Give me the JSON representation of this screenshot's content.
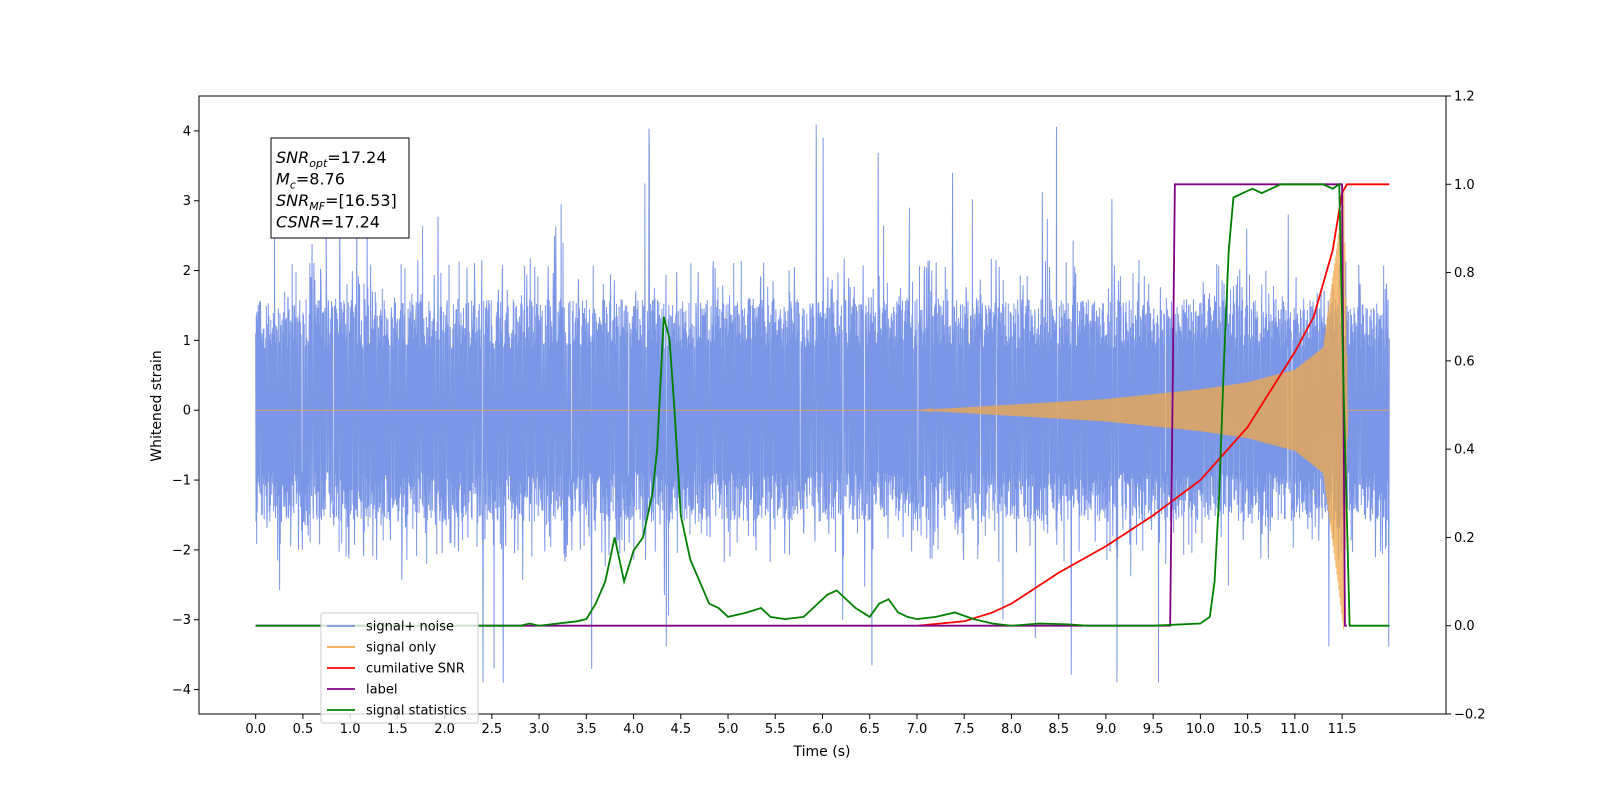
{
  "chart_data": {
    "type": "line",
    "xlabel": "Time (s)",
    "ylabel": "Whitened strain",
    "xlim": [
      -0.6,
      12.6
    ],
    "ylim": [
      -4.35,
      4.5
    ],
    "ylim_right": [
      -0.2,
      1.2
    ],
    "x_ticks": [
      "0.0",
      "0.5",
      "1.0",
      "1.5",
      "2.0",
      "2.5",
      "3.0",
      "3.5",
      "4.0",
      "4.5",
      "5.0",
      "5.5",
      "6.0",
      "6.5",
      "7.0",
      "7.5",
      "8.0",
      "8.5",
      "9.0",
      "9.5",
      "10.0",
      "10.5",
      "11.0",
      "11.5"
    ],
    "y_ticks_left": [
      "4",
      "3",
      "2",
      "1",
      "0",
      "−1",
      "−2",
      "−3",
      "−4"
    ],
    "y_ticks_right": [
      "1.2",
      "1.0",
      "0.8",
      "0.6",
      "0.4",
      "0.2",
      "0.0",
      "−0.2"
    ],
    "grid": false,
    "legend_position": "lower-left",
    "annotation": {
      "lines": [
        {
          "name": "SNR",
          "sub": "opt",
          "value": "=17.24"
        },
        {
          "name": "M",
          "sub": "c",
          "value": "=8.76"
        },
        {
          "name": "SNR",
          "sub": "MF",
          "value": "=[16.53]"
        },
        {
          "name": "CSNR",
          "sub": "",
          "value": "=17.24"
        }
      ]
    },
    "series": [
      {
        "name": "signal+ noise",
        "axis": "left",
        "color": "#7b96e6",
        "x_range": [
          0.0,
          12.0
        ],
        "noise_band": [
          -1.6,
          1.6
        ],
        "spike_max": 4.1,
        "spike_min": -3.9
      },
      {
        "name": "signal only",
        "axis": "left",
        "color": "#f0a848",
        "x_range": [
          0.0,
          12.0
        ],
        "envelope": {
          "x": [
            0.0,
            7.0,
            8.0,
            9.0,
            10.0,
            10.5,
            11.0,
            11.3,
            11.45,
            11.52,
            11.56,
            12.0
          ],
          "amp": [
            0.0,
            0.0,
            0.08,
            0.16,
            0.3,
            0.4,
            0.58,
            0.9,
            2.4,
            3.2,
            0.0,
            0.0
          ]
        }
      },
      {
        "name": "cumilative SNR",
        "axis": "right",
        "color": "#ff0000",
        "x": [
          7.0,
          7.5,
          7.8,
          8.0,
          8.5,
          9.0,
          9.5,
          10.0,
          10.5,
          11.0,
          11.2,
          11.4,
          11.5,
          11.55,
          12.0
        ],
        "y": [
          0.0,
          0.01,
          0.03,
          0.05,
          0.12,
          0.18,
          0.25,
          0.33,
          0.45,
          0.62,
          0.7,
          0.85,
          0.98,
          1.0,
          1.0
        ]
      },
      {
        "name": "label",
        "axis": "right",
        "color": "#800080",
        "x": [
          0.0,
          9.68,
          9.73,
          11.5,
          11.53,
          11.55
        ],
        "y": [
          0.0,
          0.0,
          1.0,
          1.0,
          0.0,
          0.0
        ]
      },
      {
        "name": "signal statistics",
        "axis": "right",
        "color": "#008000",
        "x": [
          0.0,
          2.8,
          2.9,
          3.0,
          3.2,
          3.4,
          3.5,
          3.6,
          3.7,
          3.8,
          3.9,
          4.0,
          4.1,
          4.2,
          4.25,
          4.32,
          4.38,
          4.43,
          4.5,
          4.6,
          4.8,
          4.9,
          5.0,
          5.2,
          5.35,
          5.45,
          5.6,
          5.8,
          5.95,
          6.05,
          6.15,
          6.25,
          6.35,
          6.5,
          6.6,
          6.7,
          6.8,
          6.9,
          7.0,
          7.2,
          7.4,
          7.6,
          7.8,
          8.0,
          8.3,
          8.6,
          8.8,
          9.0,
          9.5,
          10.0,
          10.1,
          10.15,
          10.2,
          10.25,
          10.3,
          10.35,
          10.45,
          10.55,
          10.65,
          10.75,
          10.85,
          11.3,
          11.4,
          11.47,
          11.52,
          11.58,
          12.0
        ],
        "y": [
          0.0,
          0.0,
          0.005,
          0.0,
          0.005,
          0.01,
          0.015,
          0.05,
          0.1,
          0.2,
          0.1,
          0.17,
          0.2,
          0.3,
          0.4,
          0.7,
          0.65,
          0.5,
          0.25,
          0.15,
          0.05,
          0.04,
          0.02,
          0.03,
          0.04,
          0.02,
          0.015,
          0.02,
          0.05,
          0.07,
          0.08,
          0.06,
          0.04,
          0.02,
          0.05,
          0.06,
          0.03,
          0.02,
          0.015,
          0.02,
          0.03,
          0.015,
          0.005,
          0.0,
          0.005,
          0.003,
          0.0,
          0.0,
          0.0,
          0.005,
          0.02,
          0.1,
          0.3,
          0.6,
          0.85,
          0.97,
          0.98,
          0.99,
          0.98,
          0.99,
          1.0,
          1.0,
          0.99,
          1.0,
          0.5,
          0.0,
          0.0
        ]
      }
    ]
  }
}
